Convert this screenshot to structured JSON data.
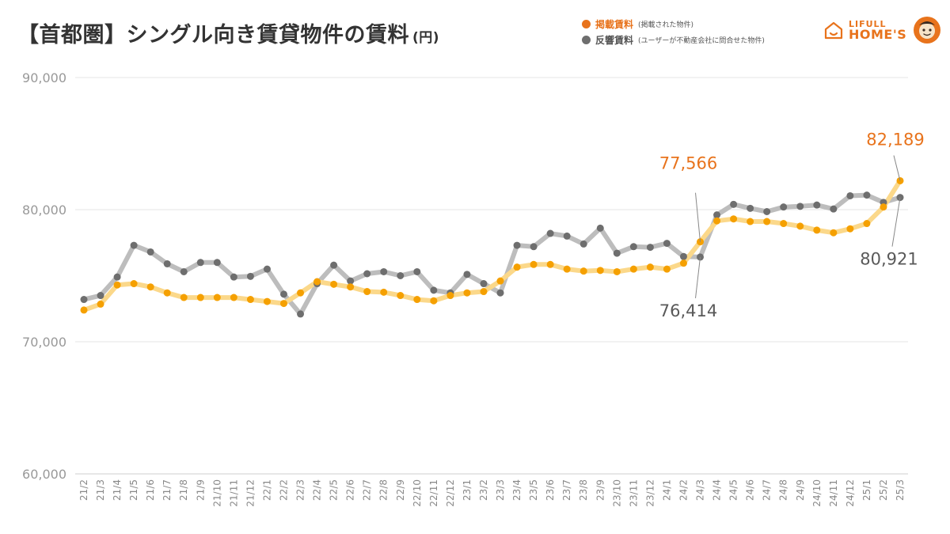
{
  "title": "【首都圏】シングル向き賃貸物件の賃料",
  "title_unit": "(円)",
  "legend": [
    {
      "name": "掲載賃料",
      "note": "(掲載された物件)",
      "color": "#e8731c"
    },
    {
      "name": "反響賃料",
      "note": "(ユーザーが不動産会社に問合せた物件)",
      "color": "#6e6e6e"
    }
  ],
  "logo": {
    "small": "LIFULL",
    "big": "HOME'S"
  },
  "chart_data": {
    "type": "line",
    "ylim": [
      60000,
      90000
    ],
    "yticks": [
      "60,000",
      "70,000",
      "80,000",
      "90,000"
    ],
    "ytick_values": [
      60000,
      70000,
      80000,
      90000
    ],
    "grid": true,
    "categories": [
      "21/2",
      "21/3",
      "21/4",
      "21/5",
      "21/6",
      "21/7",
      "21/8",
      "21/9",
      "21/10",
      "21/11",
      "21/12",
      "22/1",
      "22/2",
      "22/3",
      "22/4",
      "22/5",
      "22/6",
      "22/7",
      "22/8",
      "22/9",
      "22/10",
      "22/11",
      "22/12",
      "23/1",
      "23/2",
      "23/3",
      "23/4",
      "23/5",
      "23/6",
      "23/7",
      "23/8",
      "23/9",
      "23/10",
      "23/11",
      "23/12",
      "24/1",
      "24/2",
      "24/3",
      "24/4",
      "24/5",
      "24/6",
      "24/7",
      "24/8",
      "24/9",
      "24/10",
      "24/11",
      "24/12",
      "25/1",
      "25/2",
      "25/3"
    ],
    "series": [
      {
        "name": "反響賃料",
        "color": "#6e6e6e",
        "line_color": "#bdbdbd",
        "values": [
          73200,
          73500,
          74900,
          77300,
          76800,
          75900,
          75300,
          76000,
          76000,
          74900,
          74950,
          75500,
          73600,
          72100,
          74400,
          75800,
          74600,
          75150,
          75300,
          75000,
          75300,
          73900,
          73700,
          75100,
          74400,
          73700,
          77300,
          77200,
          78200,
          78000,
          77400,
          78600,
          76700,
          77200,
          77150,
          77450,
          76450,
          76414,
          79600,
          80400,
          80100,
          79850,
          80200,
          80250,
          80350,
          80050,
          81050,
          81100,
          80550,
          80921
        ]
      },
      {
        "name": "掲載賃料",
        "color": "#f5a000",
        "line_color": "#fbd88a",
        "values": [
          72400,
          72850,
          74300,
          74400,
          74150,
          73700,
          73350,
          73350,
          73350,
          73350,
          73200,
          73050,
          72900,
          73700,
          74550,
          74350,
          74150,
          73800,
          73750,
          73500,
          73200,
          73100,
          73500,
          73700,
          73800,
          74600,
          75650,
          75850,
          75850,
          75500,
          75350,
          75400,
          75300,
          75500,
          75650,
          75500,
          75950,
          77566,
          79150,
          79300,
          79100,
          79100,
          78950,
          78750,
          78450,
          78250,
          78550,
          78950,
          80200,
          82189
        ]
      }
    ],
    "callouts": [
      {
        "text": "77,566",
        "series": "掲載賃料",
        "index": 37
      },
      {
        "text": "76,414",
        "series": "反響賃料",
        "index": 37
      },
      {
        "text": "82,189",
        "series": "掲載賃料",
        "index": 49
      },
      {
        "text": "80,921",
        "series": "反響賃料",
        "index": 49
      }
    ]
  }
}
